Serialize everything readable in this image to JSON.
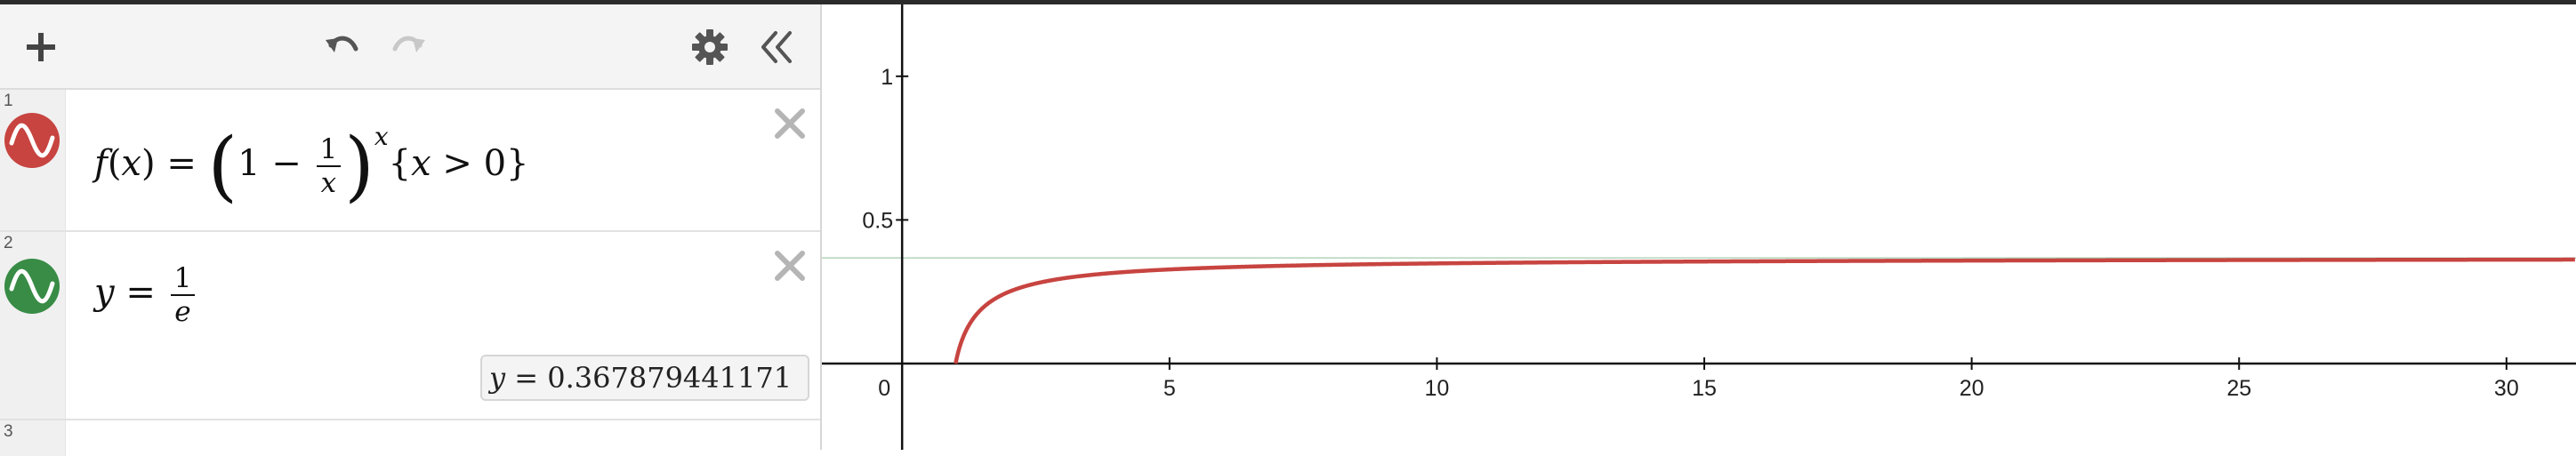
{
  "toolbar": {
    "add_icon": "plus-icon",
    "undo_icon": "undo-icon",
    "redo_icon": "redo-icon",
    "settings_icon": "gear-icon",
    "collapse_icon": "double-chevron-left-icon"
  },
  "expressions": [
    {
      "number": "1",
      "color": "#c74440",
      "latex": "f(x)=\\left(1-\\frac{1}{x}\\right)^{x}\\{x>0\\}",
      "parts": {
        "fname": "f",
        "lparen": "(",
        "var": "x",
        "rparen": ")",
        "eq": "=",
        "one": "1",
        "minus": "−",
        "numerator": "1",
        "denominator": "x",
        "exponent": "x",
        "restriction_open": "{",
        "restriction_var": "x",
        "restriction_op": ">",
        "restriction_val": "0",
        "restriction_close": "}"
      }
    },
    {
      "number": "2",
      "color": "#388c46",
      "latex": "y=\\frac{1}{e}",
      "parts": {
        "lhs": "y",
        "eq": "=",
        "numerator": "1",
        "denominator": "e"
      },
      "result": {
        "var": "y",
        "eq": "=",
        "value": "0.367879441171"
      }
    },
    {
      "number": "3"
    }
  ],
  "graph": {
    "x_ticks": [
      "0",
      "5",
      "10",
      "15",
      "20",
      "25",
      "30"
    ],
    "y_ticks": [
      "1",
      "0.5"
    ],
    "x_range": [
      -1.5,
      31.3
    ],
    "y_range": [
      -0.3,
      1.25
    ],
    "curve_color": "#c74440",
    "line_color": "#388c46",
    "line_value": 0.367879441171
  }
}
